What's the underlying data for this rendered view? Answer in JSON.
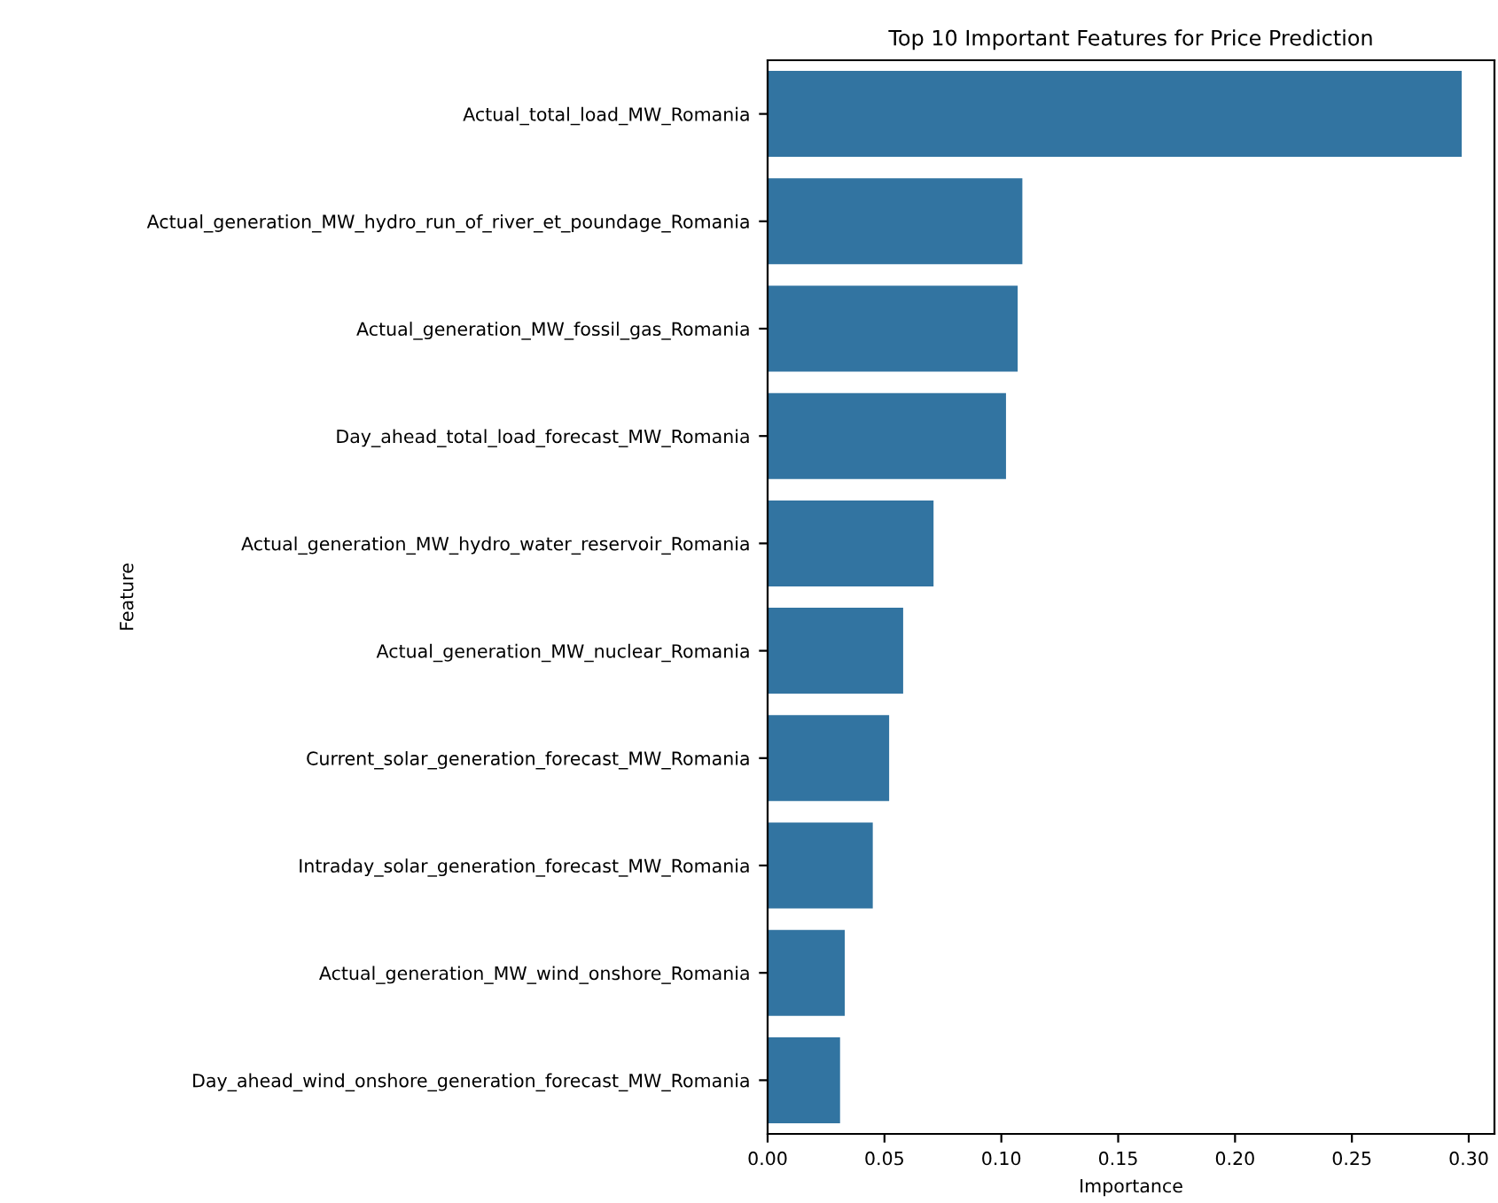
{
  "chart_data": {
    "type": "bar",
    "orientation": "horizontal",
    "title": "Top 10 Important Features for Price Prediction",
    "xlabel": "Importance",
    "ylabel": "Feature",
    "categories": [
      "Actual_total_load_MW_Romania",
      "Actual_generation_MW_hydro_run_of_river_et_poundage_Romania",
      "Actual_generation_MW_fossil_gas_Romania",
      "Day_ahead_total_load_forecast_MW_Romania",
      "Actual_generation_MW_hydro_water_reservoir_Romania",
      "Actual_generation_MW_nuclear_Romania",
      "Current_solar_generation_forecast_MW_Romania",
      "Intraday_solar_generation_forecast_MW_Romania",
      "Actual_generation_MW_wind_onshore_Romania",
      "Day_ahead_wind_onshore_generation_forecast_MW_Romania"
    ],
    "values": [
      0.297,
      0.109,
      0.107,
      0.102,
      0.071,
      0.058,
      0.052,
      0.045,
      0.033,
      0.031
    ],
    "color": "#3274a1",
    "xlim": [
      0,
      0.311
    ],
    "xticks": [
      {
        "value": 0,
        "label": "0.00"
      },
      {
        "value": 0.05,
        "label": "0.05"
      },
      {
        "value": 0.1,
        "label": "0.10"
      },
      {
        "value": 0.15,
        "label": "0.15"
      },
      {
        "value": 0.2,
        "label": "0.20"
      },
      {
        "value": 0.25,
        "label": "0.25"
      },
      {
        "value": 0.3,
        "label": "0.30"
      }
    ],
    "grid": false,
    "legend": false
  }
}
